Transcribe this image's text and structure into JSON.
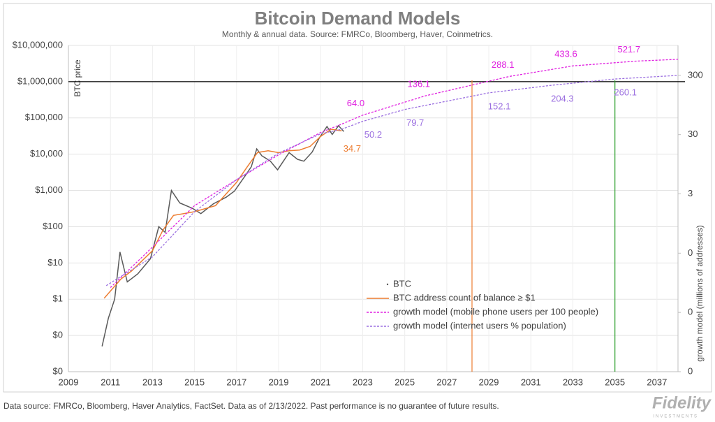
{
  "chart_data": {
    "type": "line",
    "title": "Bitcoin Demand Models",
    "subtitle": "Monthly & annual data.  Source: FMRCo, Bloomberg, Haver, Coinmetrics.",
    "y_label": "BTC price",
    "y2_label": "growth model (millions of addresses)",
    "xlim": [
      2009,
      2038
    ],
    "xticks": [
      2009,
      2011,
      2013,
      2015,
      2017,
      2019,
      2021,
      2023,
      2025,
      2027,
      2029,
      2031,
      2033,
      2035,
      2037
    ],
    "log_scale": true,
    "ylim": [
      0.01,
      10000000
    ],
    "yticks": [
      {
        "value": 0.01,
        "label": "$0"
      },
      {
        "value": 0.1,
        "label": "$0"
      },
      {
        "value": 1,
        "label": "$1"
      },
      {
        "value": 10,
        "label": "$10"
      },
      {
        "value": 100,
        "label": "$100"
      },
      {
        "value": 1000,
        "label": "$1,000"
      },
      {
        "value": 10000,
        "label": "$10,000"
      },
      {
        "value": 100000,
        "label": "$100,000"
      },
      {
        "value": 1000000,
        "label": "$1,000,000"
      },
      {
        "value": 10000000,
        "label": "$10,000,000"
      }
    ],
    "y2lim": [
      0.003,
      960
    ],
    "y2ticks": [
      {
        "value": 0.003,
        "label": "0"
      },
      {
        "value": 0.03,
        "label": "0"
      },
      {
        "value": 0.3,
        "label": "0"
      },
      3,
      30,
      300
    ],
    "grid": true,
    "series": [
      {
        "name": "BTC",
        "color": "#595959",
        "axis": "y",
        "x": [
          2010.6,
          2010.9,
          2011.2,
          2011.45,
          2011.8,
          2012.3,
          2012.9,
          2013.3,
          2013.6,
          2013.9,
          2014.3,
          2014.9,
          2015.3,
          2015.9,
          2016.5,
          2016.9,
          2017.4,
          2017.7,
          2017.96,
          2018.2,
          2018.6,
          2018.95,
          2019.5,
          2019.9,
          2020.2,
          2020.6,
          2020.95,
          2021.3,
          2021.55,
          2021.85,
          2022.1
        ],
        "values": [
          0.05,
          0.3,
          1,
          20,
          3,
          5,
          13,
          100,
          70,
          1000,
          450,
          320,
          230,
          430,
          650,
          960,
          2500,
          4500,
          14000,
          9000,
          6500,
          3700,
          11000,
          7200,
          6400,
          11500,
          29000,
          58000,
          35000,
          61000,
          42000
        ]
      },
      {
        "name": "BTC address count of balance ≥ $1",
        "color": "#ed7d31",
        "axis": "y2",
        "x": [
          2010.7,
          2011.5,
          2012,
          2013,
          2013.5,
          2014,
          2015,
          2016,
          2017,
          2017.5,
          2018,
          2018.5,
          2019,
          2019.5,
          2020,
          2020.5,
          2021,
          2021.5,
          2022
        ],
        "values": [
          0.052,
          0.11,
          0.15,
          0.33,
          0.74,
          1.3,
          1.5,
          1.9,
          4.7,
          8.5,
          15,
          16,
          14.9,
          16,
          16.5,
          19,
          28,
          37,
          34.7
        ]
      },
      {
        "name": "growth model (mobile phone users per 100 people)",
        "color": "#e020e0",
        "axis": "y2",
        "dashed": true,
        "x": [
          2011,
          2013,
          2015,
          2017,
          2019,
          2021,
          2022,
          2023,
          2026,
          2030,
          2033,
          2036,
          2038
        ],
        "values": [
          0.079,
          0.38,
          1.9,
          5.2,
          13.7,
          32.6,
          45,
          64,
          136.1,
          288.1,
          433.6,
          521.7,
          560
        ]
      },
      {
        "name": "growth model (internet users % population)",
        "color": "#9b6fe0",
        "axis": "y2",
        "dashed": true,
        "x": [
          2010.8,
          2013,
          2015,
          2017,
          2019,
          2021,
          2022,
          2023,
          2025,
          2029,
          2032,
          2035,
          2038
        ],
        "values": [
          0.085,
          0.26,
          1.5,
          5.2,
          14.6,
          31,
          37,
          50.2,
          79.7,
          152.1,
          204.3,
          260.1,
          300
        ]
      }
    ],
    "annotations": [
      {
        "label": "34.7",
        "x": 2022,
        "y": 34.7,
        "color": "#ed7d31"
      },
      {
        "label": "64.0",
        "x": 2023,
        "y": 64,
        "color": "#e020e0"
      },
      {
        "label": "136.1",
        "x": 2026,
        "y": 136.1,
        "color": "#e020e0"
      },
      {
        "label": "288.1",
        "x": 2030,
        "y": 288.1,
        "color": "#e020e0"
      },
      {
        "label": "433.6",
        "x": 2033,
        "y": 433.6,
        "color": "#e020e0"
      },
      {
        "label": "521.7",
        "x": 2036,
        "y": 521.7,
        "color": "#e020e0"
      },
      {
        "label": "50.2",
        "x": 2023,
        "y": 50.2,
        "color": "#9b6fe0"
      },
      {
        "label": "79.7",
        "x": 2025,
        "y": 79.7,
        "color": "#9b6fe0"
      },
      {
        "label": "152.1",
        "x": 2029,
        "y": 152.1,
        "color": "#9b6fe0"
      },
      {
        "label": "204.3",
        "x": 2032,
        "y": 204.3,
        "color": "#9b6fe0"
      },
      {
        "label": "260.1",
        "x": 2035,
        "y": 260.1,
        "color": "#9b6fe0"
      }
    ],
    "hlines": [
      {
        "y": 1000000,
        "color": "#000000"
      }
    ],
    "vlines": [
      {
        "x": 2028.2,
        "color": "#ed7d31"
      },
      {
        "x": 2035,
        "color": "#2ca02c"
      }
    ],
    "footnote": "Data source: FMRCo, Bloomberg, Haver Analytics, FactSet. Data as of 2/13/2022. Past performance is no guarantee of future results.",
    "logo": "Fidelity",
    "logo_sub": "INVESTMENTS"
  }
}
